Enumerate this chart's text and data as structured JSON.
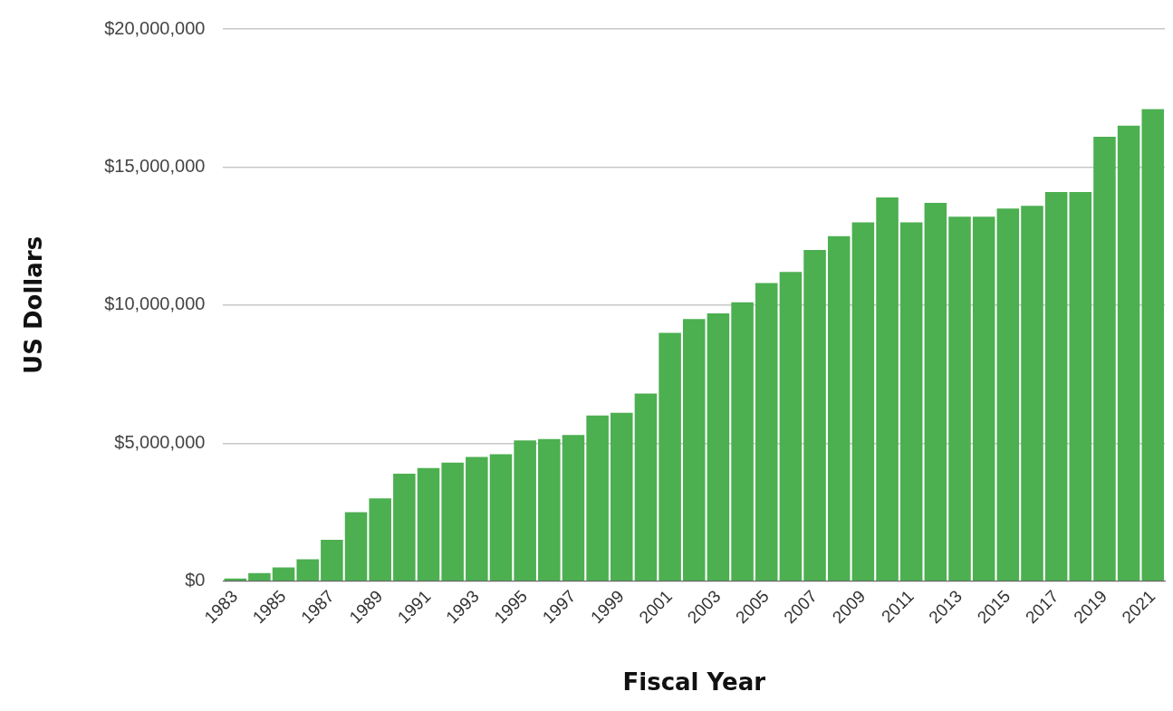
{
  "chart_data": {
    "type": "bar",
    "xlabel": "Fiscal Year",
    "ylabel": "US Dollars",
    "categories": [
      "1983",
      null,
      "1985",
      null,
      "1987",
      null,
      "1989",
      null,
      "1991",
      null,
      "1993",
      null,
      "1995",
      null,
      "1997",
      null,
      "1999",
      null,
      "2001",
      null,
      "2003",
      null,
      "2005",
      null,
      "2007",
      null,
      "2009",
      null,
      "2011",
      null,
      "2013",
      null,
      "2015",
      null,
      "2017",
      null,
      "2019",
      null,
      "2021"
    ],
    "values": [
      100000,
      300000,
      500000,
      800000,
      1500000,
      2500000,
      3000000,
      3900000,
      4100000,
      4300000,
      4500000,
      4600000,
      5100000,
      5150000,
      5300000,
      6000000,
      6100000,
      6800000,
      9000000,
      9500000,
      9700000,
      10100000,
      10800000,
      11200000,
      12000000,
      12500000,
      13000000,
      13900000,
      13000000,
      13700000,
      13200000,
      13200000,
      13500000,
      13600000,
      14100000,
      14100000,
      16100000,
      16500000,
      17100000
    ],
    "color": "#4caf50",
    "ylim": [
      0,
      20000000
    ],
    "yticks": [
      {
        "value": 0,
        "label": "$0"
      },
      {
        "value": 5000000,
        "label": "$5,000,000"
      },
      {
        "value": 10000000,
        "label": "$10,000,000"
      },
      {
        "value": 15000000,
        "label": "$15,000,000"
      },
      {
        "value": 20000000,
        "label": "$20,000,000"
      }
    ],
    "grid": "y",
    "legend": false
  }
}
